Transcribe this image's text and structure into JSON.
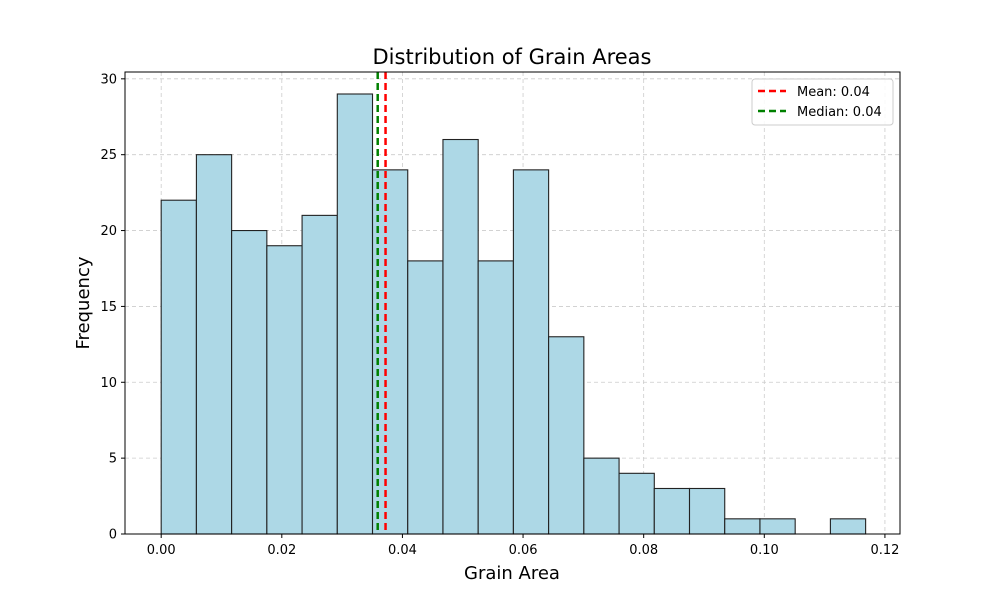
{
  "chart_data": {
    "type": "bar",
    "title": "Distribution of Grain Areas",
    "xlabel": "Grain Area",
    "ylabel": "Frequency",
    "xlim": [
      -0.006,
      0.1225
    ],
    "ylim": [
      0,
      30.45
    ],
    "xticks": [
      0.0,
      0.02,
      0.04,
      0.06,
      0.08,
      0.1,
      0.12
    ],
    "xtick_labels": [
      "0.00",
      "0.02",
      "0.04",
      "0.06",
      "0.08",
      "0.10",
      "0.12"
    ],
    "yticks": [
      0,
      5,
      10,
      15,
      20,
      25,
      30
    ],
    "ytick_labels": [
      "0",
      "5",
      "10",
      "15",
      "20",
      "25",
      "30"
    ],
    "grid": true,
    "bin_edges": [
      0.0,
      0.00584,
      0.01168,
      0.01752,
      0.02336,
      0.0292,
      0.03504,
      0.04088,
      0.04672,
      0.05256,
      0.0584,
      0.06424,
      0.07008,
      0.07592,
      0.08176,
      0.0876,
      0.09344,
      0.09928,
      0.10512,
      0.11096,
      0.1168
    ],
    "values": [
      22,
      25,
      20,
      19,
      21,
      29,
      24,
      18,
      26,
      18,
      24,
      13,
      5,
      4,
      3,
      3,
      1,
      1,
      0,
      1
    ],
    "bar_color": "#add8e6",
    "bar_edge_color": "#222222",
    "reference_lines": [
      {
        "name": "Mean: 0.04",
        "value": 0.0372,
        "color": "#ff0000"
      },
      {
        "name": "Median: 0.04",
        "value": 0.0359,
        "color": "#008000"
      }
    ],
    "legend_position": "top-right"
  }
}
